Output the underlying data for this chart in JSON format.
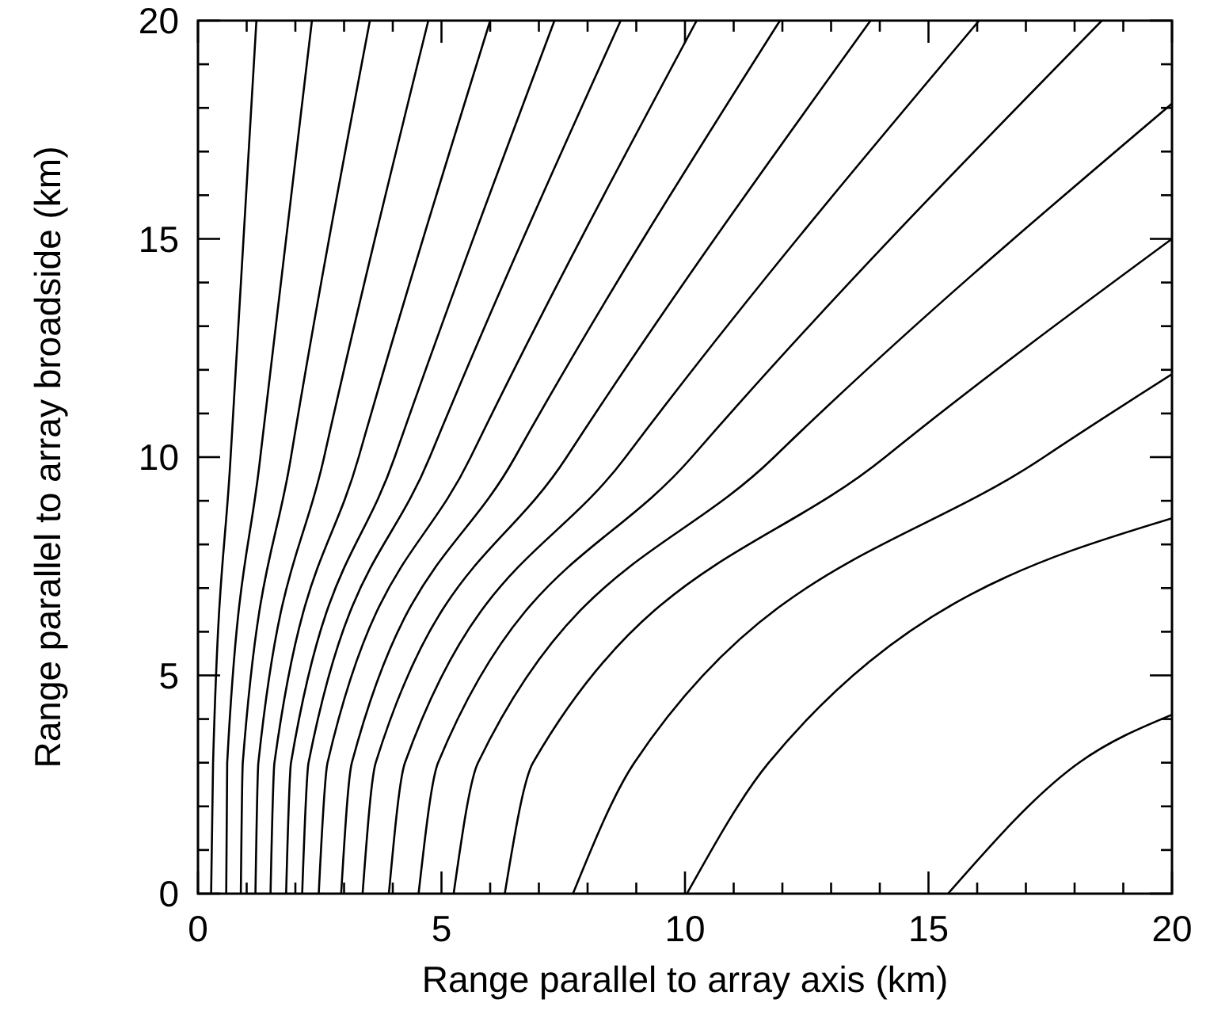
{
  "chart_data": {
    "type": "line",
    "xlabel": "Range parallel to array axis (km)",
    "ylabel": "Range parallel to array broadside (km)",
    "xlim": [
      0,
      20
    ],
    "ylim": [
      0,
      20
    ],
    "xticks": [
      0,
      {
        "value": 1,
        "label": null
      },
      {
        "value": 2,
        "label": null
      },
      {
        "value": 3,
        "label": null
      },
      {
        "value": 4,
        "label": null
      },
      5,
      {
        "value": 6,
        "label": null
      },
      {
        "value": 7,
        "label": null
      },
      {
        "value": 8,
        "label": null
      },
      {
        "value": 9,
        "label": null
      },
      10,
      {
        "value": 11,
        "label": null
      },
      {
        "value": 12,
        "label": null
      },
      {
        "value": 13,
        "label": null
      },
      {
        "value": 14,
        "label": null
      },
      15,
      {
        "value": 16,
        "label": null
      },
      {
        "value": 17,
        "label": null
      },
      {
        "value": 18,
        "label": null
      },
      {
        "value": 19,
        "label": null
      },
      20
    ],
    "yticks": [
      0,
      {
        "value": 1,
        "label": null
      },
      {
        "value": 2,
        "label": null
      },
      {
        "value": 3,
        "label": null
      },
      {
        "value": 4,
        "label": null
      },
      5,
      {
        "value": 6,
        "label": null
      },
      {
        "value": 7,
        "label": null
      },
      {
        "value": 8,
        "label": null
      },
      {
        "value": 9,
        "label": null
      },
      10,
      {
        "value": 11,
        "label": null
      },
      {
        "value": 12,
        "label": null
      },
      {
        "value": 13,
        "label": null
      },
      {
        "value": 14,
        "label": null
      },
      15,
      {
        "value": 16,
        "label": null
      },
      {
        "value": 17,
        "label": null
      },
      {
        "value": 18,
        "label": null
      },
      {
        "value": 19,
        "label": null
      },
      20
    ],
    "series": [
      {
        "color": "#000000",
        "x": [
          0.27,
          0.31,
          0.67,
          1.2
        ],
        "values": [
          0,
          3,
          10,
          20
        ]
      },
      {
        "color": "#000000",
        "x": [
          0.58,
          0.6,
          1.28,
          2.34
        ],
        "values": [
          0,
          3,
          10,
          20
        ]
      },
      {
        "color": "#000000",
        "x": [
          0.88,
          0.92,
          1.91,
          3.53
        ],
        "values": [
          0,
          3,
          10,
          20
        ]
      },
      {
        "color": "#000000",
        "x": [
          1.18,
          1.24,
          2.59,
          4.73
        ],
        "values": [
          0,
          3,
          10,
          20
        ]
      },
      {
        "color": "#000000",
        "x": [
          1.49,
          1.57,
          3.3,
          6.0
        ],
        "values": [
          0,
          3,
          10,
          20
        ]
      },
      {
        "color": "#000000",
        "x": [
          1.81,
          1.91,
          4.04,
          7.32
        ],
        "values": [
          0,
          3,
          10,
          20
        ]
      },
      {
        "color": "#000000",
        "x": [
          2.14,
          2.27,
          4.76,
          8.68
        ],
        "values": [
          0,
          3,
          10,
          20
        ]
      },
      {
        "color": "#000000",
        "x": [
          2.48,
          2.66,
          5.6,
          10.24
        ],
        "values": [
          0,
          3,
          10,
          20
        ]
      },
      {
        "color": "#000000",
        "x": [
          2.94,
          3.16,
          6.51,
          11.95
        ],
        "values": [
          0,
          3,
          10,
          20
        ]
      },
      {
        "color": "#000000",
        "x": [
          3.38,
          3.65,
          7.57,
          13.81
        ],
        "values": [
          0,
          3,
          10,
          20
        ]
      },
      {
        "color": "#000000",
        "x": [
          3.92,
          4.25,
          8.78,
          16.04
        ],
        "values": [
          0,
          3,
          10,
          20
        ]
      },
      {
        "color": "#000000",
        "x": [
          4.53,
          4.93,
          10.14,
          18.56
        ],
        "values": [
          0,
          3,
          10,
          20
        ]
      },
      {
        "color": "#000000",
        "x": [
          5.25,
          5.75,
          11.83,
          20
        ],
        "values": [
          0,
          3,
          10,
          18.1
        ]
      },
      {
        "color": "#000000",
        "x": [
          6.3,
          6.88,
          14.11,
          20
        ],
        "values": [
          0,
          3,
          10,
          15.0
        ]
      },
      {
        "color": "#000000",
        "x": [
          7.7,
          8.96,
          17.37,
          20
        ],
        "values": [
          0,
          3,
          10,
          11.9
        ]
      },
      {
        "color": "#000000",
        "x": [
          10.04,
          11.72,
          20
        ],
        "values": [
          0,
          3,
          8.6
        ]
      },
      {
        "color": "#000000",
        "x": [
          15.4,
          18.09,
          20
        ],
        "values": [
          0,
          3,
          4.1
        ]
      }
    ]
  }
}
